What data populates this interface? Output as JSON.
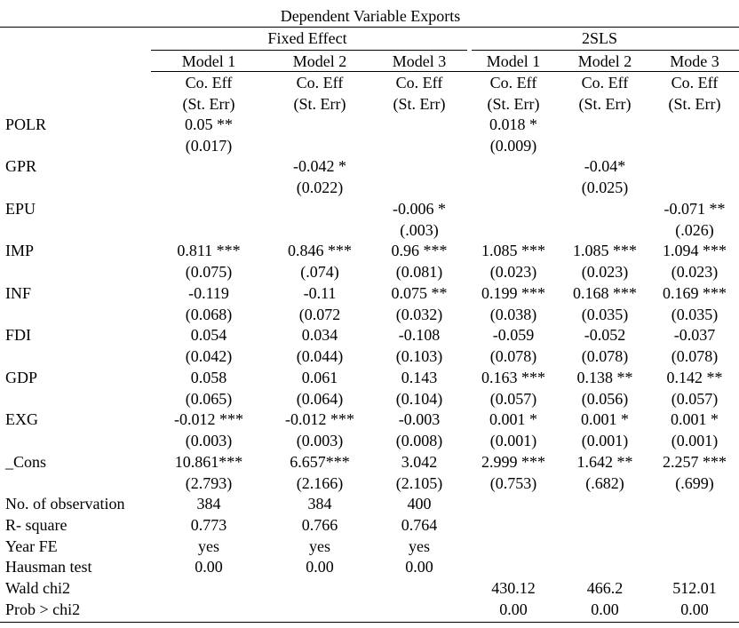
{
  "table": {
    "title": "Dependent Variable Exports",
    "groups": [
      "Fixed Effect",
      "2SLS"
    ],
    "models": [
      "Model 1",
      "Model 2",
      "Model 3",
      "Model 1",
      "Model 2",
      "Mode 3"
    ],
    "coef_header": "Co. Eff",
    "se_header": "(St. Err)",
    "rows": [
      {
        "name": "POLR",
        "coef": [
          "0.05 **",
          "",
          "",
          "0.018 *",
          "",
          ""
        ],
        "se": [
          "(0.017)",
          "",
          "",
          "(0.009)",
          "",
          ""
        ]
      },
      {
        "name": "GPR",
        "coef": [
          "",
          "-0.042 *",
          "",
          "",
          "-0.04*",
          ""
        ],
        "se": [
          "",
          "(0.022)",
          "",
          "",
          "(0.025)",
          ""
        ]
      },
      {
        "name": "EPU",
        "coef": [
          "",
          "",
          "-0.006 *",
          "",
          "",
          "-0.071 **"
        ],
        "se": [
          "",
          "",
          "(.003)",
          "",
          "",
          "(.026)"
        ]
      },
      {
        "name": "IMP",
        "coef": [
          "0.811 ***",
          "0.846 ***",
          "0.96 ***",
          "1.085 ***",
          "1.085 ***",
          "1.094 ***"
        ],
        "se": [
          "(0.075)",
          "(.074)",
          "(0.081)",
          "(0.023)",
          "(0.023)",
          "(0.023)"
        ]
      },
      {
        "name": "INF",
        "coef": [
          "-0.119",
          "-0.11",
          "0.075 **",
          "0.199 ***",
          "0.168 ***",
          "0.169 ***"
        ],
        "se": [
          "(0.068)",
          "(0.072",
          "(0.032)",
          "(0.038)",
          "(0.035)",
          "(0.035)"
        ]
      },
      {
        "name": "FDI",
        "coef": [
          "0.054",
          "0.034",
          "-0.108",
          "-0.059",
          "-0.052",
          "-0.037"
        ],
        "se": [
          "(0.042)",
          "(0.044)",
          "(0.103)",
          "(0.078)",
          "(0.078)",
          "(0.078)"
        ]
      },
      {
        "name": "GDP",
        "coef": [
          "0.058",
          "0.061",
          "0.143",
          "0.163 ***",
          "0.138 **",
          "0.142 **"
        ],
        "se": [
          "(0.065)",
          "(0.064)",
          "(0.104)",
          "(0.057)",
          "(0.056)",
          "(0.057)"
        ]
      },
      {
        "name": "EXG",
        "coef": [
          "-0.012 ***",
          "-0.012 ***",
          "-0.003",
          "0.001 *",
          "0.001 *",
          "0.001 *"
        ],
        "se": [
          "(0.003)",
          "(0.003)",
          "(0.008)",
          "(0.001)",
          "(0.001)",
          "(0.001)"
        ]
      },
      {
        "name": "_Cons",
        "coef": [
          "10.861***",
          "6.657***",
          "3.042",
          "2.999 ***",
          "1.642 **",
          "2.257 ***"
        ],
        "se": [
          "(2.793)",
          "(2.166)",
          "(2.105)",
          "(0.753)",
          "(.682)",
          "(.699)"
        ]
      }
    ],
    "stats": [
      {
        "name": "No. of observation",
        "values": [
          "384",
          "384",
          "400",
          "",
          "",
          ""
        ]
      },
      {
        "name": "R- square",
        "values": [
          "0.773",
          "0.766",
          "0.764",
          "",
          "",
          ""
        ]
      },
      {
        "name": "Year FE",
        "values": [
          "yes",
          "yes",
          "yes",
          "",
          "",
          ""
        ]
      },
      {
        "name": "Hausman test",
        "values": [
          "0.00",
          "0.00",
          "0.00",
          "",
          "",
          ""
        ]
      },
      {
        "name": "Wald chi2",
        "values": [
          "",
          "",
          "",
          "430.12",
          "466.2",
          "512.01"
        ]
      },
      {
        "name": "Prob > chi2",
        "values": [
          "",
          "",
          "",
          "0.00",
          "0.00",
          "0.00"
        ]
      }
    ]
  }
}
